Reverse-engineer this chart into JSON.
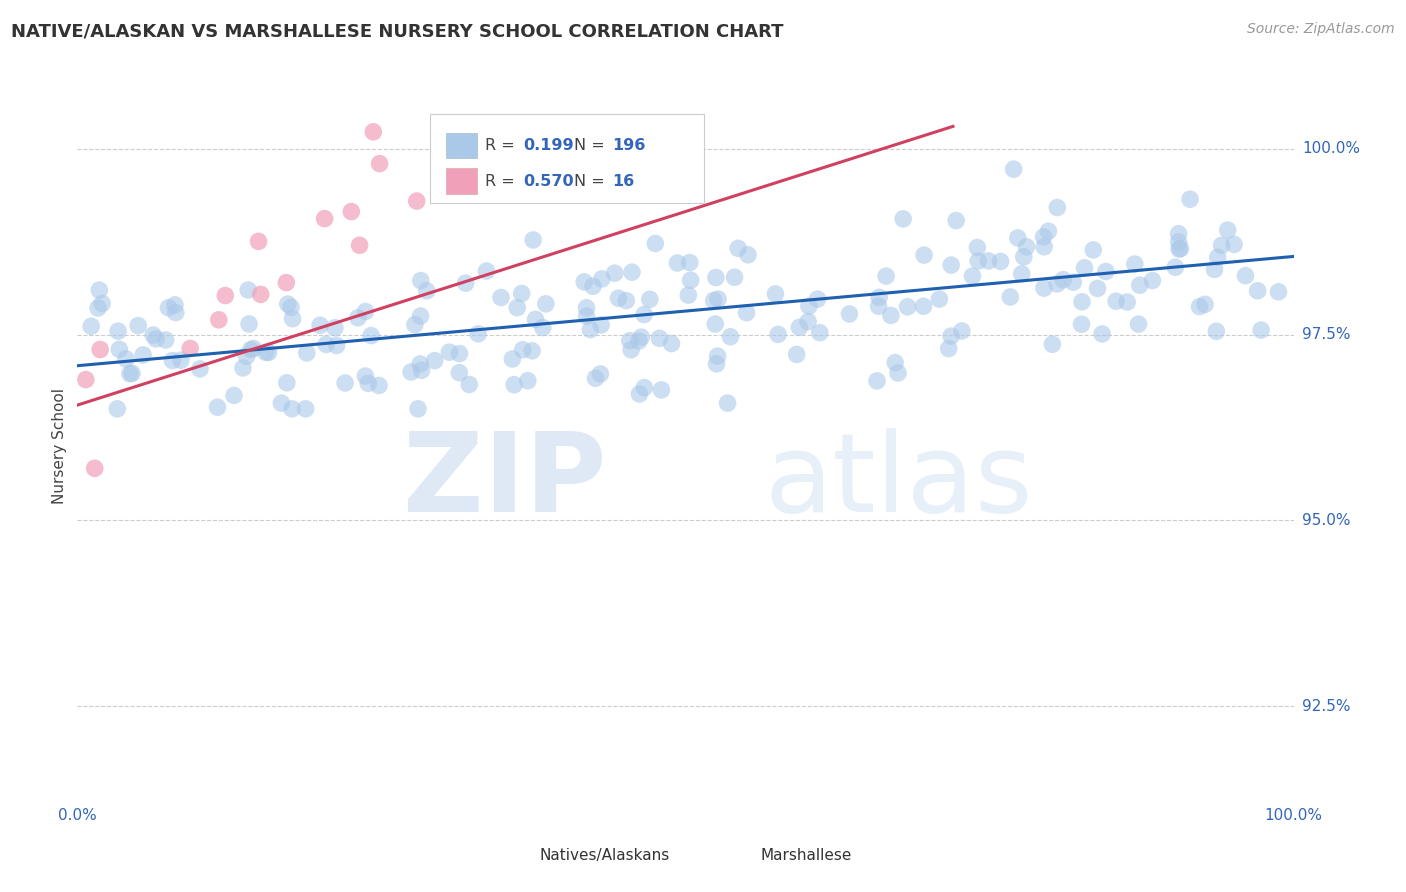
{
  "title": "NATIVE/ALASKAN VS MARSHALLESE NURSERY SCHOOL CORRELATION CHART",
  "source": "Source: ZipAtlas.com",
  "ylabel": "Nursery School",
  "xlim": [
    0.0,
    1.0
  ],
  "ylim": [
    0.912,
    1.008
  ],
  "yticks": [
    0.925,
    0.95,
    0.975,
    1.0
  ],
  "ytick_labels": [
    "92.5%",
    "95.0%",
    "97.5%",
    "100.0%"
  ],
  "legend_R_blue": "0.199",
  "legend_N_blue": "196",
  "legend_R_pink": "0.570",
  "legend_N_pink": "16",
  "blue_color": "#aac8e8",
  "pink_color": "#f0a0b8",
  "line_blue": "#2060b0",
  "line_pink": "#d04060",
  "watermark_zip": "ZIP",
  "watermark_atlas": "atlas",
  "blue_line_x": [
    0.0,
    1.0
  ],
  "blue_line_y": [
    0.9708,
    0.9855
  ],
  "pink_line_x": [
    0.0,
    0.72
  ],
  "pink_line_y": [
    0.9655,
    1.003
  ],
  "background_color": "#ffffff",
  "grid_color": "#cccccc",
  "title_color": "#333333",
  "value_color": "#3366bb",
  "source_color": "#999999"
}
